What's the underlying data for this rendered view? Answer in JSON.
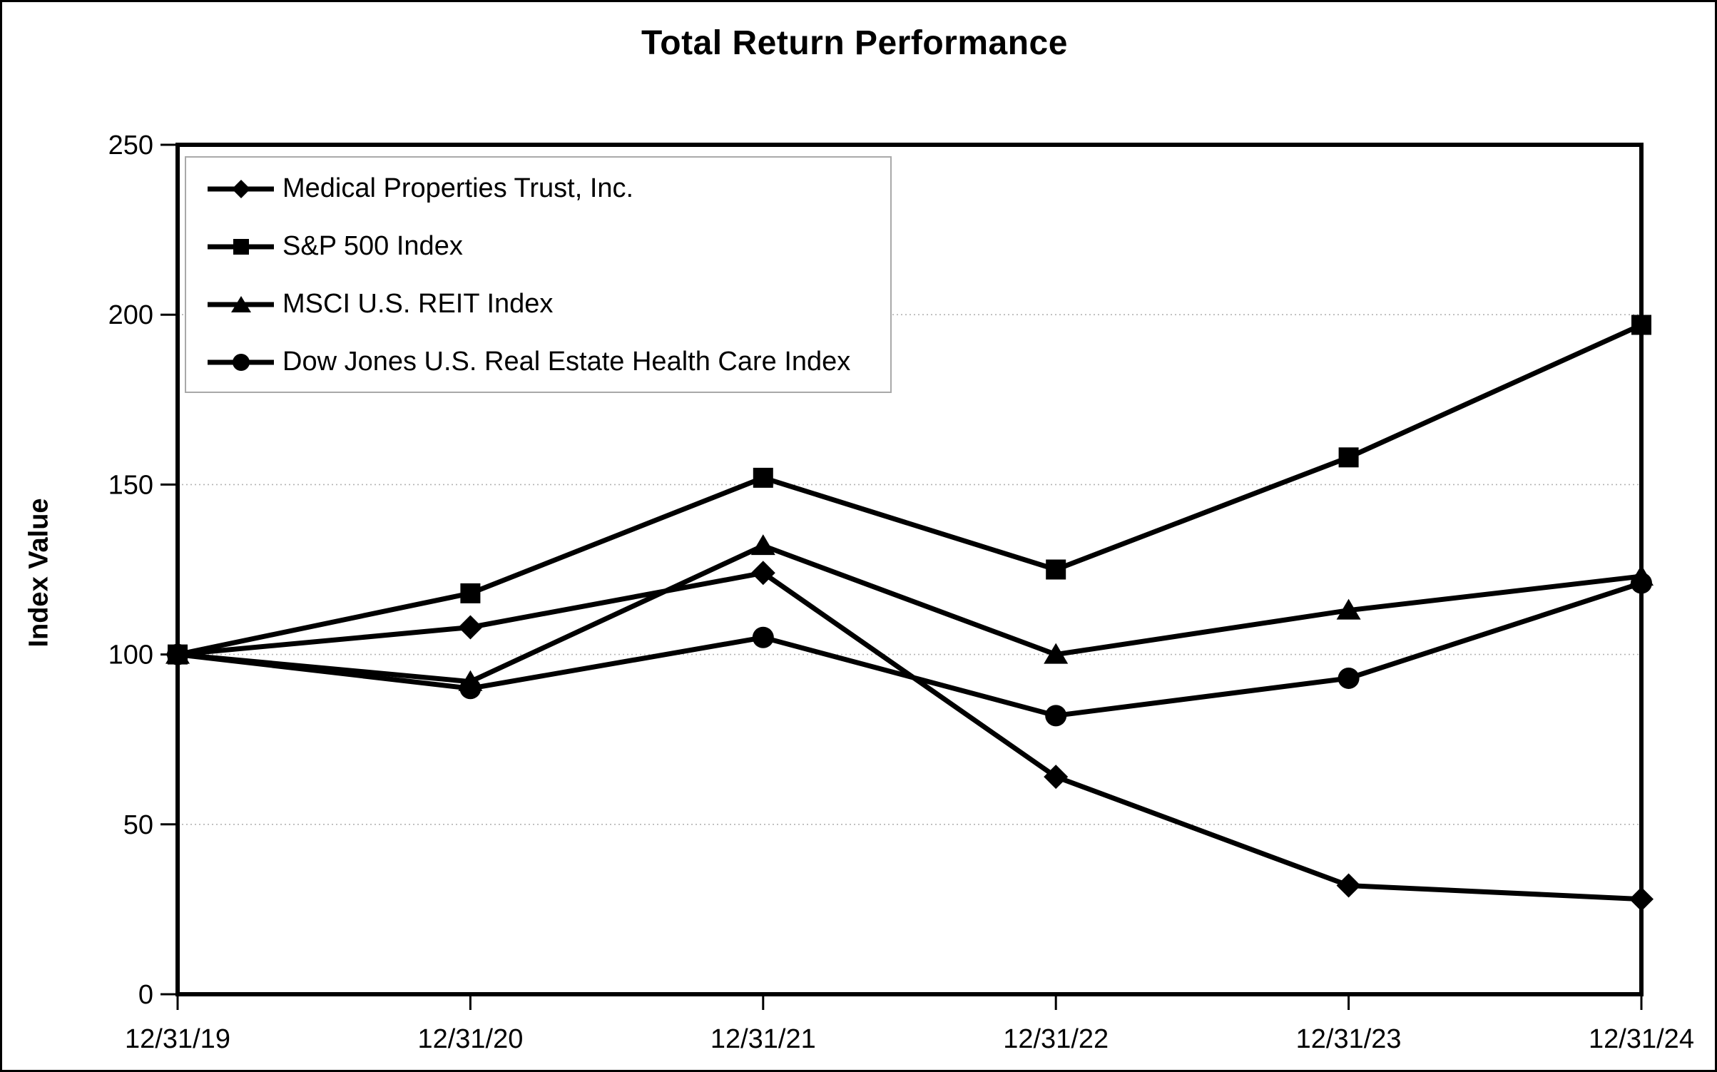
{
  "page": {
    "background_color": "#ffffff",
    "border_color": "#000000",
    "line_color": "#000000",
    "gridline_color": "#b3b3b3",
    "legend_border_color": "#a9a9a9"
  },
  "chart_data": {
    "type": "line",
    "title": "Total Return Performance",
    "xlabel": "",
    "ylabel": "Index Value",
    "categories": [
      "12/31/19",
      "12/31/20",
      "12/31/21",
      "12/31/22",
      "12/31/23",
      "12/31/24"
    ],
    "y_ticks": [
      0,
      50,
      100,
      150,
      200,
      250
    ],
    "ylim": [
      0,
      250
    ],
    "grid": "horizontal dotted lines at 50,100,150,200",
    "legend_position": "top-left inside plot",
    "series": [
      {
        "name": "Medical Properties Trust, Inc.",
        "marker": "diamond",
        "values": [
          100,
          108,
          124,
          64,
          32,
          28
        ]
      },
      {
        "name": "S&P 500 Index",
        "marker": "square",
        "values": [
          100,
          118,
          152,
          125,
          158,
          197
        ]
      },
      {
        "name": "MSCI U.S. REIT Index",
        "marker": "triangle",
        "values": [
          100,
          92,
          132,
          100,
          113,
          123
        ]
      },
      {
        "name": "Dow Jones U.S. Real Estate Health Care Index",
        "marker": "circle",
        "values": [
          100,
          90,
          105,
          82,
          93,
          121
        ]
      }
    ]
  }
}
